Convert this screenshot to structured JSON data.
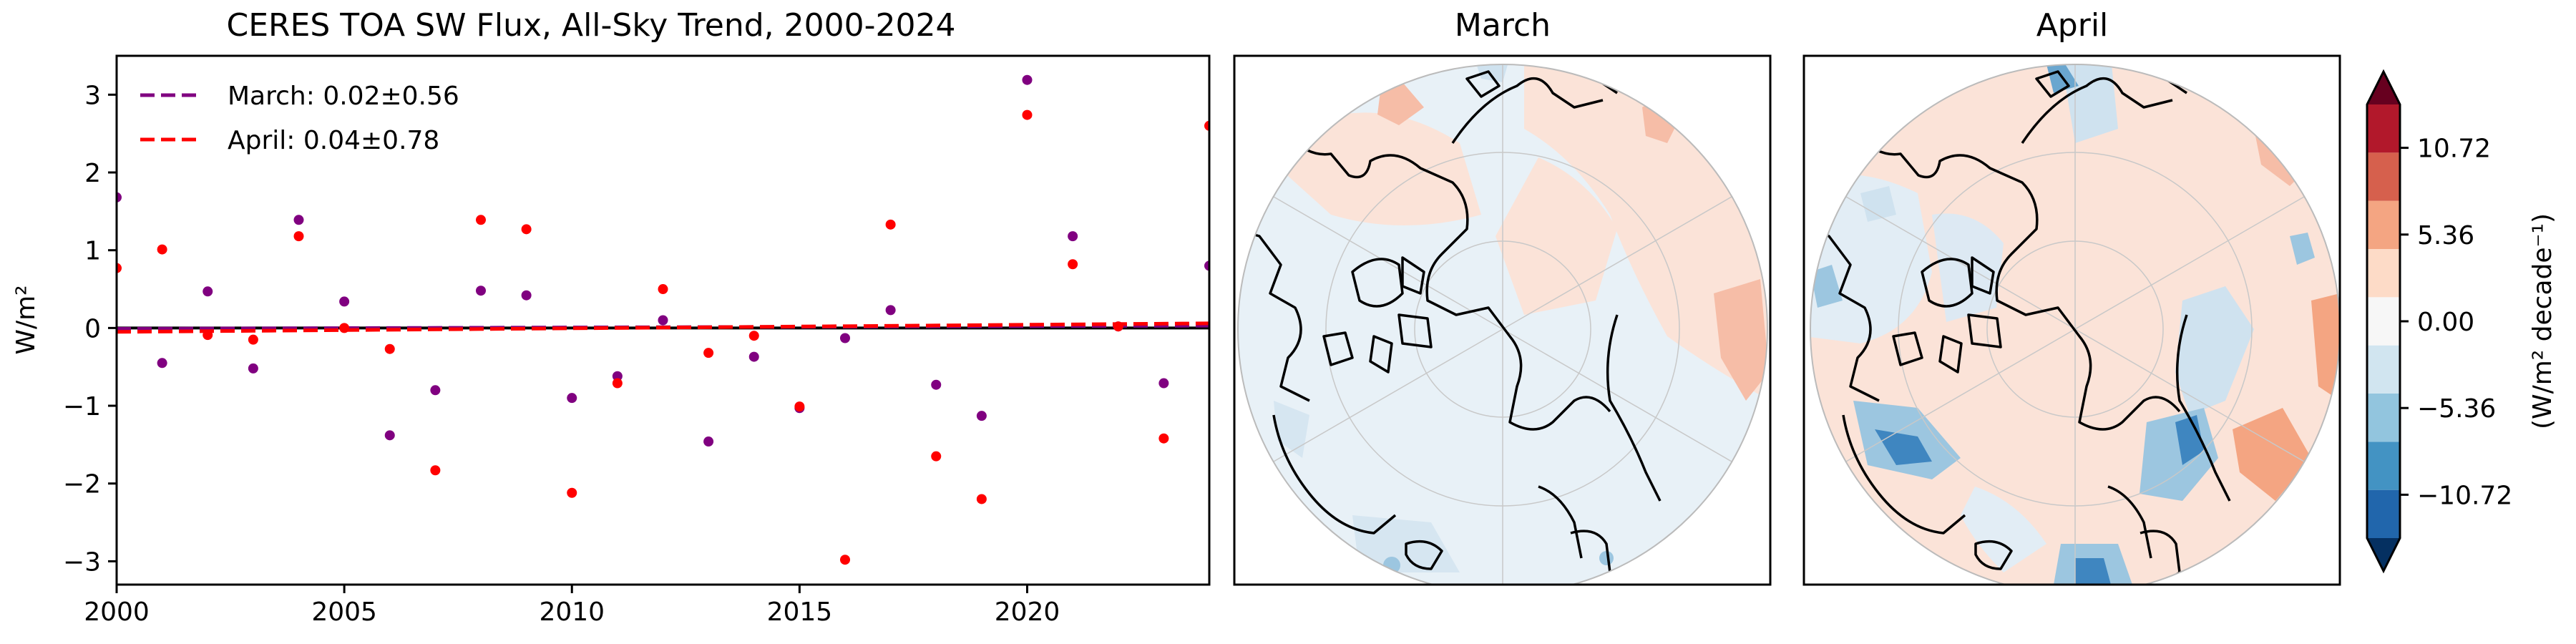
{
  "chart_data": [
    {
      "type": "scatter",
      "title": "CERES TOA SW Flux, All-Sky Trend, 2000-2024",
      "xlabel": "",
      "ylabel": "W/m²",
      "xlim": [
        2000,
        2024
      ],
      "ylim": [
        -3.3,
        3.5
      ],
      "xticks": [
        2000,
        2005,
        2010,
        2015,
        2020
      ],
      "yticks": [
        3,
        2,
        1,
        0,
        -1,
        -2,
        -3
      ],
      "ytick_labels": [
        "3",
        "2",
        "1",
        "0",
        "−1",
        "−2",
        "−3"
      ],
      "grid": false,
      "legend_position": "top-left",
      "zero_line": true,
      "series": [
        {
          "name": "March: 0.02±0.56",
          "color": "#800080",
          "x": [
            2000,
            2001,
            2002,
            2003,
            2004,
            2005,
            2006,
            2007,
            2008,
            2009,
            2010,
            2011,
            2012,
            2013,
            2014,
            2015,
            2016,
            2017,
            2018,
            2019,
            2020,
            2021,
            2022,
            2023,
            2024
          ],
          "values": [
            1.68,
            -0.45,
            0.47,
            -0.52,
            1.39,
            0.34,
            -1.38,
            -0.8,
            0.48,
            0.42,
            -0.9,
            -0.62,
            0.1,
            -1.46,
            -0.37,
            -1.03,
            -0.13,
            0.23,
            -0.73,
            -1.13,
            3.19,
            1.18,
            0.02,
            -0.71,
            0.8
          ],
          "trend": [
            -0.01,
            0.03
          ]
        },
        {
          "name": "April: 0.04±0.78",
          "color": "#ff0000",
          "x": [
            2000,
            2001,
            2002,
            2003,
            2004,
            2005,
            2006,
            2007,
            2008,
            2009,
            2010,
            2011,
            2012,
            2013,
            2014,
            2015,
            2016,
            2017,
            2018,
            2019,
            2020,
            2021,
            2022,
            2023,
            2024
          ],
          "values": [
            0.77,
            1.01,
            -0.09,
            -0.15,
            1.18,
            0.0,
            -0.27,
            -1.83,
            1.39,
            1.27,
            -2.12,
            -0.71,
            0.5,
            -0.32,
            -0.1,
            -1.01,
            -2.98,
            1.33,
            -1.65,
            -2.2,
            2.74,
            0.82,
            0.02,
            -1.42,
            2.6
          ],
          "trend": [
            -0.05,
            0.06
          ]
        }
      ]
    },
    {
      "type": "heatmap",
      "title": "March",
      "projection": "north-polar-stereographic",
      "colormap": "RdBu_r"
    },
    {
      "type": "heatmap",
      "title": "April",
      "projection": "north-polar-stereographic",
      "colormap": "RdBu_r"
    }
  ],
  "colorbar": {
    "label": "(W/m² decade⁻¹)",
    "ticks": [
      "10.72",
      "5.36",
      "0.00",
      "−5.36",
      "−10.72"
    ],
    "tick_values": [
      10.72,
      5.36,
      0.0,
      -5.36,
      -10.72
    ],
    "range": [
      -13.4,
      13.4
    ],
    "colors": [
      "#2166ac",
      "#4393c3",
      "#92c5de",
      "#d1e5f0",
      "#f7f7f7",
      "#fddbc7",
      "#f4a582",
      "#d6604d",
      "#b2182b"
    ],
    "extend_low_color": "#053061",
    "extend_high_color": "#67001f"
  }
}
